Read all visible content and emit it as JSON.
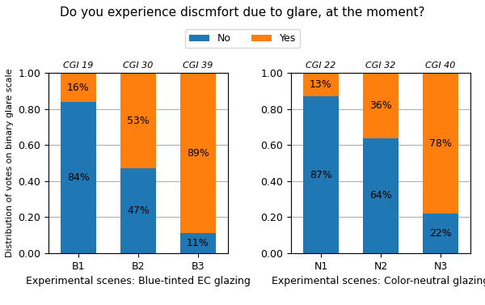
{
  "title": "Do you experience discmfort due to glare, at the moment?",
  "legend": "upper center",
  "chart_data": [
    {
      "type": "bar",
      "stacked": true,
      "data_labels": true,
      "grid": true,
      "categories": [
        "B1",
        "B2",
        "B3"
      ],
      "annotations": [
        "CGI 19",
        "CGI 30",
        "CGI 39"
      ],
      "xlabel": "Experimental scenes: Blue-tinted EC glazing",
      "ylabel": "Distribution of votes on binary glare scale",
      "ylim": [
        0.0,
        1.0
      ],
      "yticks": [
        {
          "value": 0.0,
          "label": "0.00"
        },
        {
          "value": 0.2,
          "label": "0.20"
        },
        {
          "value": 0.4,
          "label": "0.40"
        },
        {
          "value": 0.6,
          "label": "0.60"
        },
        {
          "value": 0.8,
          "label": "0.80"
        },
        {
          "value": 1.0,
          "label": "1.00"
        }
      ],
      "series": [
        {
          "name": "No",
          "values": [
            0.84,
            0.47,
            0.11
          ],
          "value_labels": [
            "84%",
            "47%",
            "11%"
          ]
        },
        {
          "name": "Yes",
          "values": [
            0.16,
            0.53,
            0.89
          ],
          "value_labels": [
            "16%",
            "53%",
            "89%"
          ]
        }
      ]
    },
    {
      "type": "bar",
      "stacked": true,
      "data_labels": true,
      "grid": true,
      "categories": [
        "N1",
        "N2",
        "N3"
      ],
      "annotations": [
        "CGI 22",
        "CGI 32",
        "CGI 40"
      ],
      "xlabel": "Experimental scenes: Color-neutral glazing",
      "ylim": [
        0.0,
        1.0
      ],
      "yticks": [
        {
          "value": 0.0,
          "label": "0.00"
        },
        {
          "value": 0.2,
          "label": "0.20"
        },
        {
          "value": 0.4,
          "label": "0.40"
        },
        {
          "value": 0.6,
          "label": "0.60"
        },
        {
          "value": 0.8,
          "label": "0.80"
        },
        {
          "value": 1.0,
          "label": "1.00"
        }
      ],
      "series": [
        {
          "name": "No",
          "values": [
            0.87,
            0.64,
            0.22
          ],
          "value_labels": [
            "87%",
            "64%",
            "22%"
          ]
        },
        {
          "name": "Yes",
          "values": [
            0.13,
            0.36,
            0.78
          ],
          "value_labels": [
            "13%",
            "36%",
            "78%"
          ]
        }
      ]
    }
  ]
}
